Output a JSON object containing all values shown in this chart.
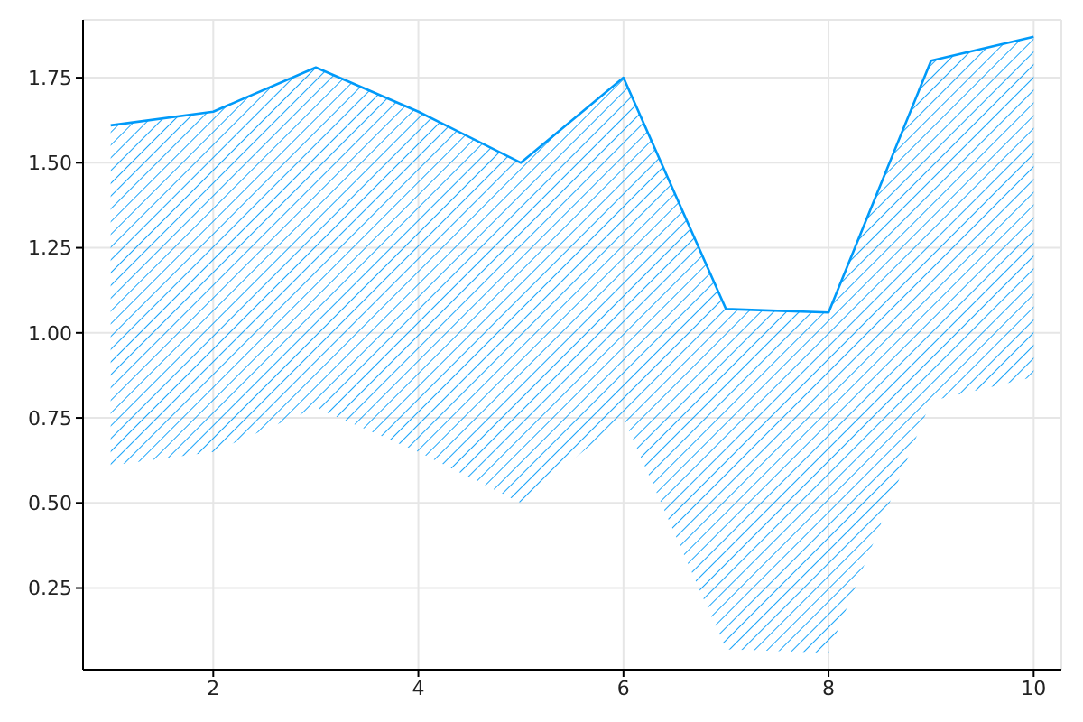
{
  "chart_data": {
    "type": "line",
    "x": [
      1,
      2,
      3,
      4,
      5,
      6,
      7,
      8,
      9,
      10
    ],
    "series": [
      {
        "color": "#009af9",
        "values": [
          1.61,
          1.65,
          1.78,
          1.65,
          1.5,
          1.75,
          1.07,
          1.06,
          1.8,
          1.87
        ],
        "lower": [
          0.61,
          0.65,
          0.78,
          0.65,
          0.5,
          0.75,
          0.07,
          0.06,
          0.8,
          0.87
        ],
        "upper": [
          1.61,
          1.65,
          1.78,
          1.65,
          1.5,
          1.75,
          1.07,
          1.06,
          1.8,
          1.87
        ]
      }
    ],
    "xlim": [
      0.73,
      10.27
    ],
    "xticks": [
      2,
      4,
      6,
      8,
      10
    ],
    "ylim": [
      0.01,
      1.92
    ],
    "yticks": [
      0.25,
      {
        "value": 0.5,
        "label": "0.50"
      },
      0.75,
      {
        "value": 1,
        "label": "1.00"
      },
      1.25,
      {
        "value": 1.5,
        "label": "1.50"
      },
      1.75
    ],
    "grid": true,
    "legend": false,
    "marker": "none",
    "line_style": "solid"
  }
}
